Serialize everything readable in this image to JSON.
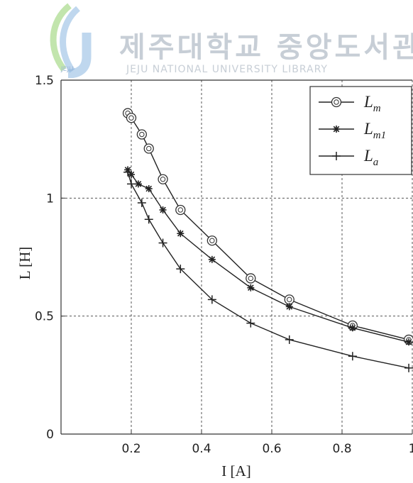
{
  "watermark": {
    "title": "제주대학교 중앙도서관",
    "subtitle": "JEJU NATIONAL UNIVERSITY LIBRARY",
    "logo_text": "JEJU",
    "colors": {
      "leaf_green": "#8fcf6a",
      "leaf_blue": "#8ab6e0",
      "text": "#c7ced6"
    }
  },
  "chart_data": {
    "type": "line",
    "xlabel": "I [A]",
    "ylabel": "L [H]",
    "xlim": [
      0,
      1.0
    ],
    "ylim": [
      0,
      1.5
    ],
    "xticks": [
      "0.2",
      "0.4",
      "0.6",
      "0.8",
      "1"
    ],
    "yticks": [
      "0",
      "0.5",
      "1",
      "1.5"
    ],
    "grid": true,
    "legend_position": "top-right",
    "series": [
      {
        "name": "L_m",
        "label_main": "L",
        "label_sub": "m",
        "marker": "circle",
        "x": [
          0.19,
          0.2,
          0.23,
          0.25,
          0.29,
          0.34,
          0.43,
          0.54,
          0.65,
          0.83,
          0.99
        ],
        "y": [
          1.36,
          1.34,
          1.27,
          1.21,
          1.08,
          0.95,
          0.82,
          0.66,
          0.57,
          0.46,
          0.4
        ]
      },
      {
        "name": "L_m1",
        "label_main": "L",
        "label_sub": "m1",
        "marker": "star",
        "x": [
          0.19,
          0.2,
          0.22,
          0.25,
          0.29,
          0.34,
          0.43,
          0.54,
          0.65,
          0.83,
          0.99
        ],
        "y": [
          1.12,
          1.1,
          1.06,
          1.04,
          0.95,
          0.85,
          0.74,
          0.62,
          0.54,
          0.45,
          0.39
        ]
      },
      {
        "name": "L_a",
        "label_main": "L",
        "label_sub": "a",
        "marker": "plus",
        "x": [
          0.19,
          0.2,
          0.23,
          0.25,
          0.29,
          0.34,
          0.43,
          0.54,
          0.65,
          0.83,
          0.99
        ],
        "y": [
          1.11,
          1.06,
          0.98,
          0.91,
          0.81,
          0.7,
          0.57,
          0.47,
          0.4,
          0.33,
          0.28
        ]
      }
    ]
  }
}
